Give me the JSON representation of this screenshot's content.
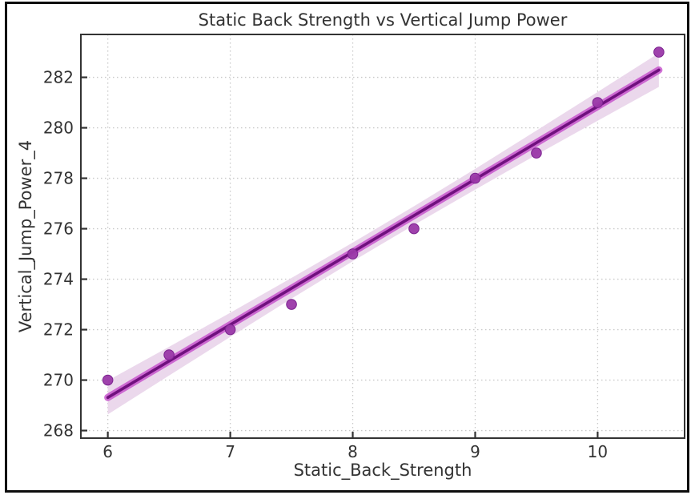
{
  "figure": {
    "background": "#ffffff",
    "border_color": "#0d0d0d"
  },
  "chart_data": {
    "type": "scatter",
    "title": "Static Back Strength vs Vertical Jump Power",
    "xlabel": "Static_Back_Strength",
    "ylabel": "Vertical_Jump_Power_4",
    "legend": "none",
    "grid": true,
    "points": {
      "x": [
        6,
        6.5,
        7,
        7.5,
        8,
        8.5,
        9,
        9.5,
        10,
        10.5
      ],
      "y": [
        270,
        271,
        272,
        273,
        275,
        276,
        278,
        279,
        281,
        283
      ]
    },
    "trend_line": {
      "x": [
        6,
        10.5
      ],
      "y": [
        269.31,
        282.29
      ]
    },
    "ci_band": {
      "x": [
        6,
        6.5,
        7,
        7.5,
        8,
        8.5,
        9,
        9.5,
        10,
        10.5
      ],
      "upper": [
        269.98,
        271.32,
        272.67,
        274.05,
        275.45,
        276.89,
        278.37,
        279.89,
        281.42,
        282.96
      ],
      "lower": [
        268.64,
        270.18,
        271.71,
        273.23,
        274.71,
        276.15,
        277.55,
        278.93,
        280.28,
        281.62
      ]
    },
    "x_ticks": [
      6,
      7,
      8,
      9,
      10
    ],
    "y_ticks": [
      268,
      270,
      272,
      274,
      276,
      278,
      280,
      282
    ],
    "xlim": [
      5.78,
      10.71
    ],
    "ylim": [
      267.7,
      283.7
    ],
    "colors": {
      "scatter": "#9a38a8",
      "scatter_edge": "#7c2390",
      "line": "#70107e",
      "line_glow": "#c44ecb",
      "band": "#e9d4ea",
      "grid": "#c9c9c9",
      "axis": "#333333",
      "text": "#333333"
    }
  }
}
